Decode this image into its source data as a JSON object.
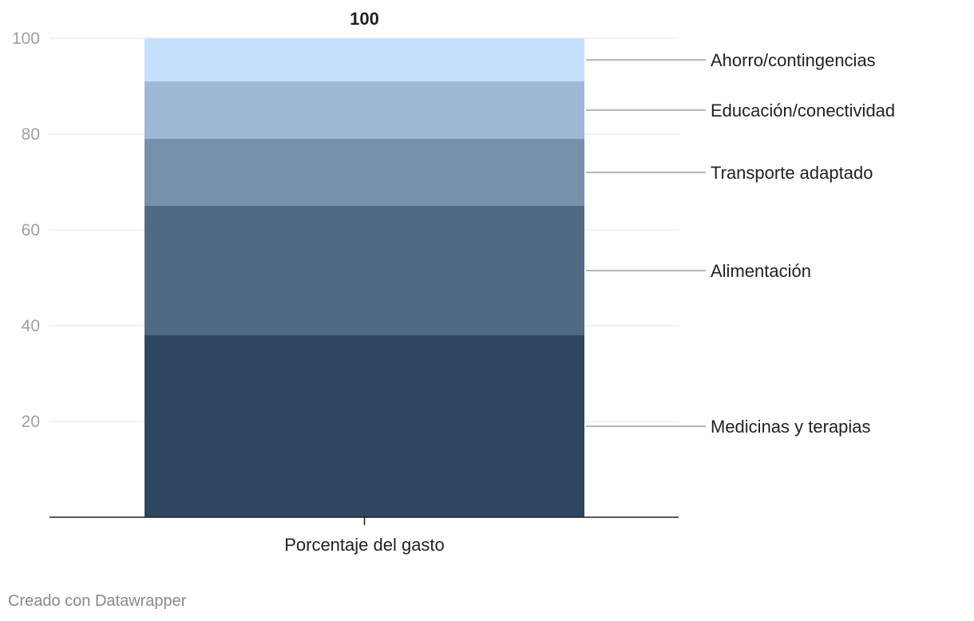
{
  "chart_data": {
    "type": "bar",
    "stacked": true,
    "categories": [
      "Porcentaje del gasto"
    ],
    "total_label": "100",
    "series": [
      {
        "name": "Medicinas y terapias",
        "values": [
          38
        ],
        "color": "#2e475e"
      },
      {
        "name": "Alimentación",
        "values": [
          27
        ],
        "color": "#4f6a82"
      },
      {
        "name": "Transporte adaptado",
        "values": [
          14
        ],
        "color": "#7791aa"
      },
      {
        "name": "Educación/conectividad",
        "values": [
          12
        ],
        "color": "#9eb8d5"
      },
      {
        "name": "Ahorro/contingencias",
        "values": [
          9
        ],
        "color": "#c5e0fd"
      }
    ],
    "ylim": [
      0,
      100
    ],
    "yticks": [
      20,
      40,
      60,
      80,
      100
    ],
    "grid": true,
    "legend": "right (direct labels)"
  },
  "colors": {
    "grid": "#e6e6e6",
    "axis": "#222222",
    "tick_label": "#a0a0a0",
    "leader": "#8c8c8c"
  },
  "footer": {
    "credit": "Creado con Datawrapper"
  }
}
